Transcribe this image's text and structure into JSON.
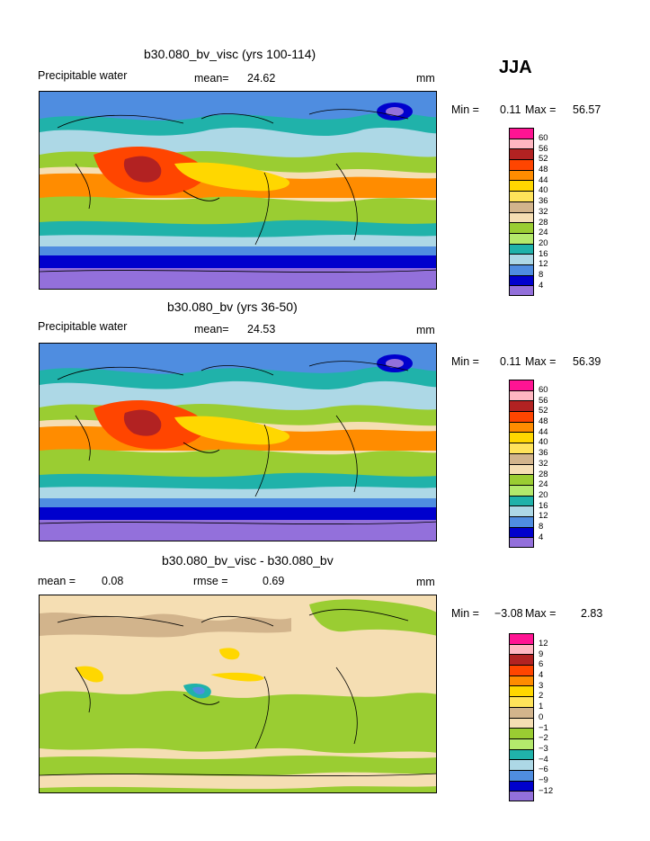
{
  "season": "JJA",
  "panels": [
    {
      "title": "b30.080_bv_visc (yrs 100-114)",
      "variable": "Precipitable water",
      "mean_label": "mean=",
      "mean_value": "24.62",
      "units": "mm",
      "min_label": "Min =",
      "min_value": "0.11",
      "max_label": "Max =",
      "max_value": "56.57",
      "legend_levels": [
        "60",
        "56",
        "52",
        "48",
        "44",
        "40",
        "36",
        "32",
        "28",
        "24",
        "20",
        "16",
        "12",
        "8",
        "4"
      ]
    },
    {
      "title": "b30.080_bv (yrs 36-50)",
      "variable": "Precipitable water",
      "mean_label": "mean=",
      "mean_value": "24.53",
      "units": "mm",
      "min_label": "Min =",
      "min_value": "0.11",
      "max_label": "Max =",
      "max_value": "56.39",
      "legend_levels": [
        "60",
        "56",
        "52",
        "48",
        "44",
        "40",
        "36",
        "32",
        "28",
        "24",
        "20",
        "16",
        "12",
        "8",
        "4"
      ]
    },
    {
      "title": "b30.080_bv_visc - b30.080_bv",
      "mean_label": "mean =",
      "mean_value": "0.08",
      "rmse_label": "rmse =",
      "rmse_value": "0.69",
      "units": "mm",
      "min_label": "Min =",
      "min_value": "−3.08",
      "max_label": "Max =",
      "max_value": "2.83",
      "legend_levels": [
        "12",
        "9",
        "6",
        "4",
        "3",
        "2",
        "1",
        "0",
        "−1",
        "−2",
        "−3",
        "−4",
        "−6",
        "−9",
        "−12"
      ]
    }
  ],
  "colors": {
    "scale": [
      "#ff1493",
      "#ffb6c1",
      "#b22222",
      "#ff4500",
      "#ff8c00",
      "#ffd700",
      "#ffe35a",
      "#d2b48c",
      "#f5deb3",
      "#9acd32",
      "#b4e96c",
      "#20b2aa",
      "#add8e6",
      "#4f8de0",
      "#0000cd",
      "#9370db"
    ],
    "diff_scale": [
      "#ff1493",
      "#ffb6c1",
      "#b22222",
      "#ff4500",
      "#ff8c00",
      "#ffd700",
      "#ffe35a",
      "#d2b48c",
      "#f5deb3",
      "#9acd32",
      "#b4e96c",
      "#20b2aa",
      "#add8e6",
      "#4f8de0",
      "#0000cd",
      "#9370db"
    ]
  }
}
